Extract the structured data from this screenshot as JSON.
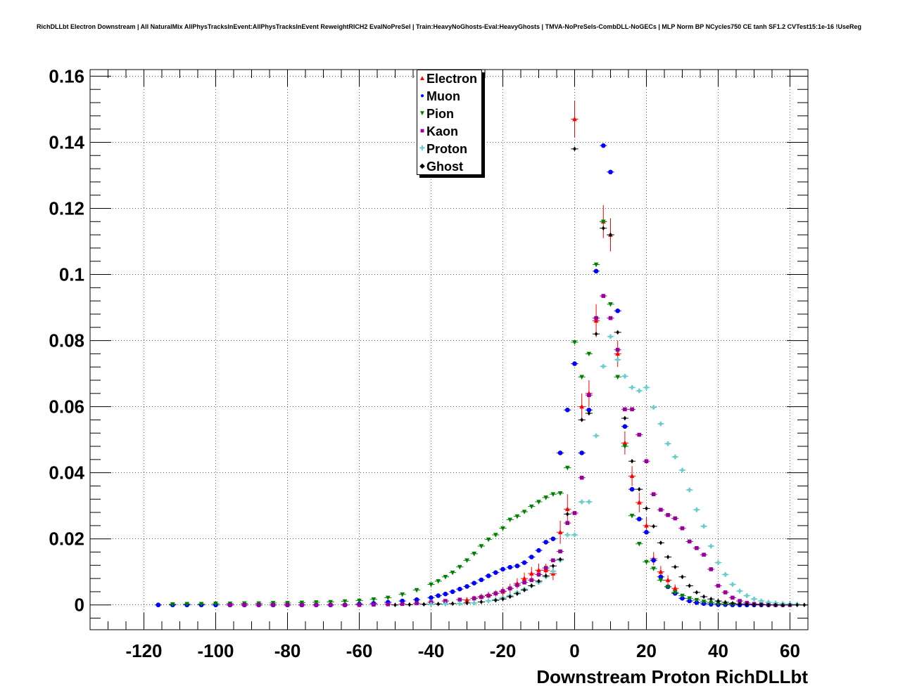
{
  "chart_data": {
    "type": "scatter",
    "title": "RichDLLbt Electron Downstream | All NaturalMix AllPhysTracksInEvent:AllPhysTracksInEvent ReweightRICH2 EvalNoPreSel | Train:HeavyNoGhosts-Eval:HeavyGhosts | TMVA-NoPreSels-CombDLL-NoGECs | MLP Norm BP NCycles750 CE tanh SF1.2 CVTest15:1e-16 !UseReg",
    "xlabel": "Downstream Proton RichDLLbt",
    "ylabel": "",
    "xlim": [
      -135,
      65
    ],
    "ylim": [
      -0.0075,
      0.162
    ],
    "x_ticks": [
      -120,
      -100,
      -80,
      -60,
      -40,
      -20,
      0,
      20,
      40,
      60
    ],
    "x_tick_labels": [
      "-120",
      "-100",
      "-80",
      "-60",
      "-40",
      "-20",
      "0",
      "20",
      "40",
      "60"
    ],
    "y_ticks": [
      0,
      0.02,
      0.04,
      0.06,
      0.08,
      0.1,
      0.12,
      0.14,
      0.16
    ],
    "y_tick_labels": [
      "0",
      "0.02",
      "0.04",
      "0.06",
      "0.08",
      "0.1",
      "0.12",
      "0.14",
      "0.16"
    ],
    "grid": true,
    "legend_position": "top-center",
    "series": [
      {
        "name": "Electron",
        "color": "#ff0000",
        "marker": "triangle-up",
        "x": [
          -30,
          -28,
          -26,
          -24,
          -22,
          -20,
          -18,
          -16,
          -14,
          -12,
          -10,
          -8,
          -6,
          -4,
          -2,
          0,
          2,
          4,
          6,
          8,
          10,
          12,
          14,
          16,
          18,
          20,
          22,
          24,
          26,
          28
        ],
        "y": [
          0.0015,
          0.002,
          0.0025,
          0.003,
          0.0035,
          0.004,
          0.005,
          0.0065,
          0.008,
          0.0095,
          0.0105,
          0.0105,
          0.0095,
          0.022,
          0.029,
          0.147,
          0.06,
          0.064,
          0.086,
          0.116,
          0.112,
          0.076,
          0.049,
          0.039,
          0.031,
          0.024,
          0.014,
          0.01,
          0.0075,
          0.005
        ],
        "yerr": [
          0.0008,
          0.0008,
          0.0009,
          0.001,
          0.001,
          0.0012,
          0.0014,
          0.0016,
          0.0018,
          0.002,
          0.002,
          0.002,
          0.002,
          0.0035,
          0.0045,
          0.0055,
          0.004,
          0.004,
          0.005,
          0.005,
          0.005,
          0.004,
          0.0035,
          0.003,
          0.003,
          0.0025,
          0.002,
          0.0018,
          0.0015,
          0.0012
        ],
        "err_scale": [
          0,
          0,
          0,
          0,
          0,
          0,
          0,
          0,
          0,
          0,
          0,
          0,
          0,
          0,
          0,
          0,
          0,
          0,
          0,
          0,
          0,
          0,
          0,
          0,
          0,
          0,
          0,
          0,
          0,
          0
        ]
      },
      {
        "name": "Muon",
        "color": "#0000ff",
        "marker": "circle",
        "x": [
          -116,
          -112,
          -108,
          -104,
          -100,
          -96,
          -92,
          -88,
          -84,
          -80,
          -76,
          -72,
          -68,
          -64,
          -60,
          -56,
          -52,
          -48,
          -44,
          -40,
          -38,
          -36,
          -34,
          -32,
          -30,
          -28,
          -26,
          -24,
          -22,
          -20,
          -18,
          -16,
          -14,
          -12,
          -10,
          -8,
          -6,
          -4,
          -2,
          0,
          2,
          4,
          6,
          8,
          10,
          12,
          14,
          16,
          18,
          20,
          22,
          24,
          26,
          28,
          30,
          32,
          34,
          36,
          38,
          40,
          42,
          44,
          46,
          48,
          50,
          52,
          54,
          56,
          58
        ],
        "y": [
          0,
          0,
          0,
          0,
          0,
          0,
          0,
          0,
          0,
          0,
          0,
          0,
          0,
          0,
          0.0003,
          0.0005,
          0.0008,
          0.0012,
          0.0016,
          0.0022,
          0.0028,
          0.0033,
          0.004,
          0.0048,
          0.0056,
          0.0066,
          0.0076,
          0.0088,
          0.0098,
          0.0108,
          0.0114,
          0.0118,
          0.0128,
          0.0145,
          0.0165,
          0.019,
          0.02,
          0.046,
          0.059,
          0.073,
          0.046,
          0.059,
          0.101,
          0.139,
          0.131,
          0.089,
          0.054,
          0.035,
          0.026,
          0.022,
          0.0135,
          0.0085,
          0.0055,
          0.0035,
          0.002,
          0.0012,
          0.0007,
          0.0004,
          0.0002,
          0.0001,
          0.0001,
          0,
          0,
          0,
          0,
          0,
          0,
          0,
          0
        ],
        "yerr": []
      },
      {
        "name": "Pion",
        "color": "#008000",
        "marker": "triangle-down",
        "x": [
          -112,
          -108,
          -104,
          -100,
          -96,
          -92,
          -88,
          -84,
          -80,
          -76,
          -72,
          -68,
          -64,
          -60,
          -56,
          -52,
          -48,
          -44,
          -40,
          -38,
          -36,
          -34,
          -32,
          -30,
          -28,
          -26,
          -24,
          -22,
          -20,
          -18,
          -16,
          -14,
          -12,
          -10,
          -8,
          -6,
          -4,
          -2,
          0,
          2,
          4,
          6,
          8,
          10,
          12,
          14,
          16,
          18,
          20,
          22,
          24,
          26,
          28,
          30,
          32,
          34,
          36,
          38,
          40,
          42,
          44
        ],
        "y": [
          0.0002,
          0.0003,
          0.0003,
          0.0004,
          0.0004,
          0.0005,
          0.0005,
          0.0006,
          0.0006,
          0.0007,
          0.0008,
          0.0009,
          0.0011,
          0.0013,
          0.0017,
          0.0022,
          0.0032,
          0.0045,
          0.0062,
          0.0072,
          0.0085,
          0.0098,
          0.0115,
          0.0135,
          0.0155,
          0.0178,
          0.0198,
          0.0212,
          0.0232,
          0.0258,
          0.0268,
          0.0282,
          0.0298,
          0.0312,
          0.0325,
          0.0335,
          0.0338,
          0.0415,
          0.0795,
          0.069,
          0.076,
          0.103,
          0.116,
          0.091,
          0.069,
          0.048,
          0.027,
          0.0185,
          0.013,
          0.011,
          0.0075,
          0.0055,
          0.0038,
          0.0028,
          0.002,
          0.0015,
          0.001,
          0.0007,
          0.0005,
          0.0003,
          0.0002
        ],
        "yerr": []
      },
      {
        "name": "Kaon",
        "color": "#990099",
        "marker": "square",
        "x": [
          -96,
          -92,
          -88,
          -84,
          -80,
          -76,
          -72,
          -68,
          -64,
          -60,
          -56,
          -52,
          -48,
          -44,
          -40,
          -36,
          -32,
          -28,
          -26,
          -24,
          -22,
          -20,
          -18,
          -16,
          -14,
          -12,
          -10,
          -8,
          -6,
          -4,
          -2,
          0,
          2,
          4,
          6,
          8,
          10,
          12,
          14,
          16,
          18,
          20,
          22,
          24,
          26,
          28,
          30,
          32,
          34,
          36,
          38,
          40,
          42,
          44,
          46,
          48,
          50,
          52,
          54,
          56,
          58,
          60
        ],
        "y": [
          0,
          0,
          0,
          0,
          0,
          0,
          0,
          0,
          0,
          0,
          0.0001,
          0.0002,
          0.0003,
          0.0005,
          0.0008,
          0.0012,
          0.0016,
          0.002,
          0.0024,
          0.0028,
          0.0035,
          0.0042,
          0.005,
          0.006,
          0.0068,
          0.0075,
          0.0092,
          0.0112,
          0.0135,
          0.0162,
          0.0248,
          0.0278,
          0.0385,
          0.0635,
          0.0868,
          0.0935,
          0.0868,
          0.0772,
          0.0592,
          0.0592,
          0.0515,
          0.0435,
          0.0335,
          0.0288,
          0.0272,
          0.0262,
          0.0232,
          0.0192,
          0.0172,
          0.0152,
          0.0108,
          0.0058,
          0.0038,
          0.0022,
          0.0012,
          0.0006,
          0.0003,
          0.0002,
          0.0001,
          0,
          0,
          0
        ],
        "yerr": []
      },
      {
        "name": "Proton",
        "color": "#66cccc",
        "marker": "cross",
        "x": [
          -40,
          -36,
          -32,
          -28,
          -24,
          -22,
          -20,
          -18,
          -16,
          -14,
          -12,
          -10,
          -8,
          -6,
          -4,
          -2,
          0,
          2,
          4,
          6,
          8,
          10,
          12,
          14,
          16,
          18,
          20,
          22,
          24,
          26,
          28,
          30,
          32,
          34,
          36,
          38,
          40,
          42,
          44,
          46,
          48,
          50,
          52,
          54,
          56,
          58,
          60,
          62
        ],
        "y": [
          0.0002,
          0.0003,
          0.0004,
          0.0006,
          0.0012,
          0.0016,
          0.0022,
          0.0028,
          0.0038,
          0.0048,
          0.0058,
          0.0068,
          0.0085,
          0.0102,
          0.0135,
          0.0212,
          0.0212,
          0.0312,
          0.0312,
          0.0512,
          0.0722,
          0.0812,
          0.0742,
          0.0692,
          0.0658,
          0.0648,
          0.0658,
          0.0598,
          0.0548,
          0.0488,
          0.0448,
          0.0408,
          0.0348,
          0.0288,
          0.0238,
          0.0178,
          0.0128,
          0.0092,
          0.0062,
          0.0042,
          0.0028,
          0.0018,
          0.0012,
          0.0008,
          0.0006,
          0.0004,
          0.0003,
          0.0002
        ],
        "yerr": []
      },
      {
        "name": "Ghost",
        "color": "#000000",
        "marker": "diamond",
        "x": [
          -50,
          -46,
          -42,
          -38,
          -34,
          -30,
          -26,
          -22,
          -20,
          -18,
          -16,
          -14,
          -12,
          -10,
          -8,
          -6,
          -4,
          -2,
          0,
          2,
          4,
          6,
          8,
          10,
          12,
          14,
          16,
          18,
          20,
          22,
          24,
          26,
          28,
          30,
          32,
          34,
          36,
          38,
          40,
          42,
          44,
          46,
          48,
          50,
          52,
          54,
          56,
          58,
          60,
          62,
          64
        ],
        "y": [
          0,
          0.0001,
          0.0002,
          0.0003,
          0.0004,
          0.0006,
          0.0009,
          0.0014,
          0.0018,
          0.0025,
          0.0034,
          0.0045,
          0.0058,
          0.0072,
          0.0088,
          0.0118,
          0.0138,
          0.0275,
          0.138,
          0.056,
          0.058,
          0.082,
          0.114,
          0.112,
          0.0825,
          0.0565,
          0.0435,
          0.035,
          0.0292,
          0.0238,
          0.0188,
          0.0145,
          0.0115,
          0.0085,
          0.0058,
          0.0038,
          0.0025,
          0.0018,
          0.0012,
          0.0008,
          0.0005,
          0.0003,
          0.0002,
          0.0001,
          0.0001,
          0,
          0,
          0,
          0,
          0,
          0
        ],
        "yerr": []
      }
    ]
  }
}
